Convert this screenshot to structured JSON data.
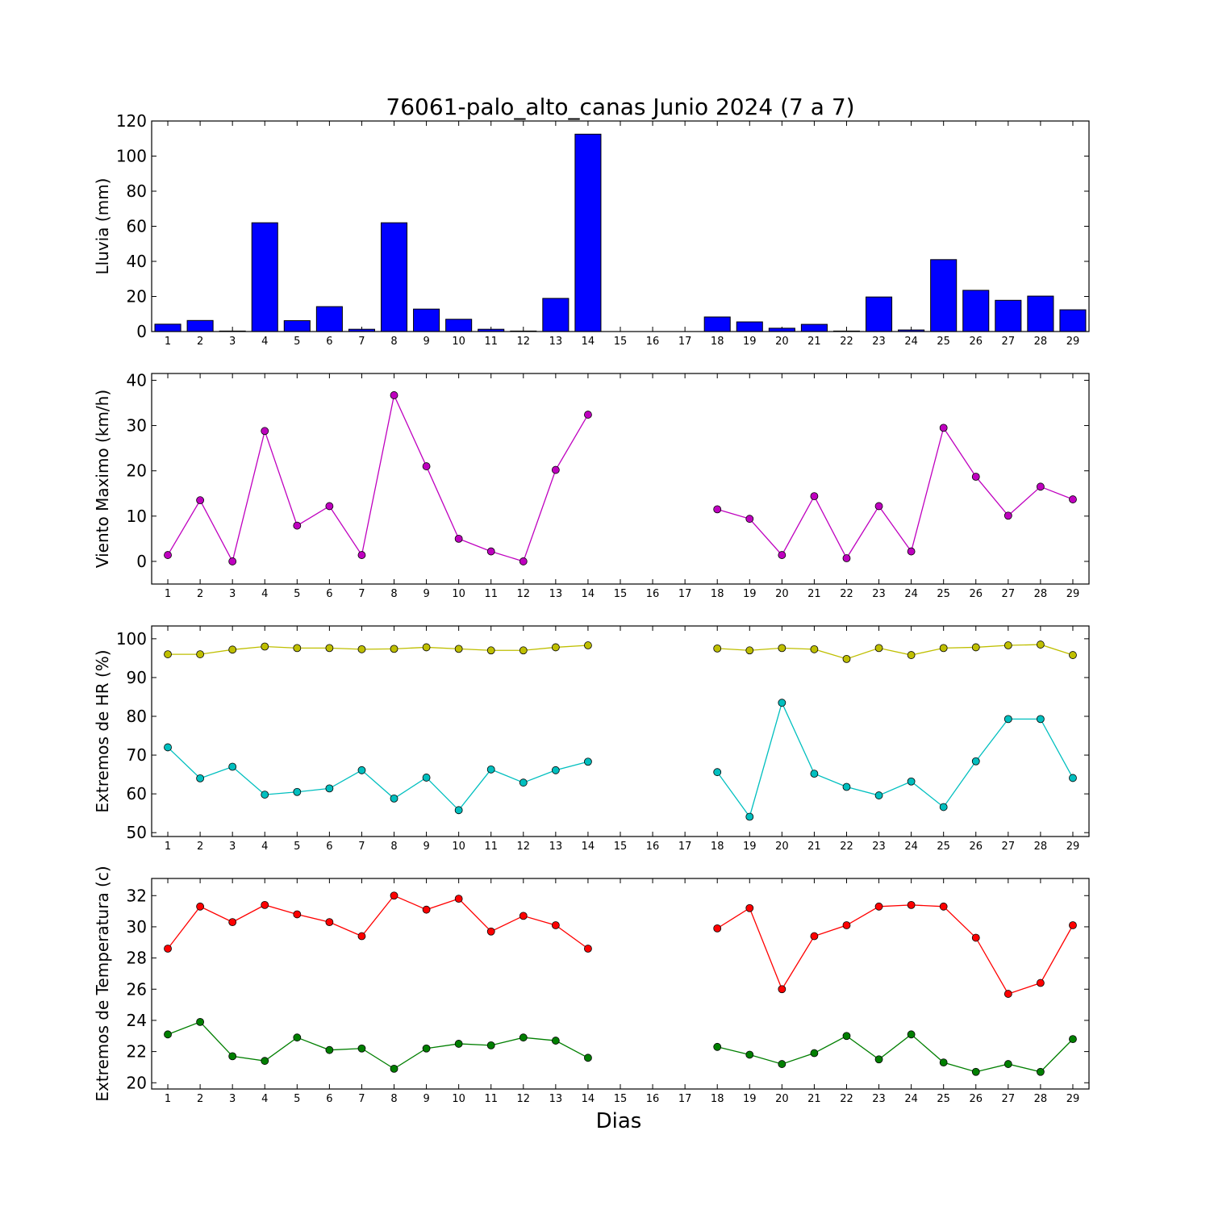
{
  "title": "76061-palo_alto_canas Junio 2024  (7 a 7)",
  "xlabel": "Dias",
  "chart_data": [
    {
      "type": "bar",
      "ylabel": "Lluvia (mm)",
      "categories": [
        1,
        2,
        3,
        4,
        5,
        6,
        7,
        8,
        9,
        10,
        11,
        12,
        13,
        14,
        15,
        16,
        17,
        18,
        19,
        20,
        21,
        22,
        23,
        24,
        25,
        26,
        27,
        28,
        29
      ],
      "ylim": [
        0,
        120
      ],
      "yticks": [
        0,
        20,
        40,
        60,
        80,
        100,
        120
      ],
      "series": [
        {
          "color": "#0000ff",
          "values": [
            4.2,
            6.3,
            0.3,
            62,
            6.2,
            14.2,
            1.3,
            62,
            12.8,
            7,
            1.3,
            0.3,
            18.9,
            112.5,
            null,
            null,
            null,
            8.3,
            5.5,
            1.9,
            4.1,
            0.3,
            19.7,
            0.9,
            41,
            23.5,
            17.8,
            20.2,
            12.4
          ]
        }
      ]
    },
    {
      "type": "line",
      "ylabel": "Viento Maximo (km/h)",
      "x": [
        1,
        2,
        3,
        4,
        5,
        6,
        7,
        8,
        9,
        10,
        11,
        12,
        13,
        14,
        15,
        16,
        17,
        18,
        19,
        20,
        21,
        22,
        23,
        24,
        25,
        26,
        27,
        28,
        29
      ],
      "ylim": [
        -5,
        41.5
      ],
      "yticks": [
        0,
        10,
        20,
        30,
        40
      ],
      "series": [
        {
          "color": "#bf00bf",
          "values": [
            1.4,
            13.5,
            0,
            28.8,
            7.9,
            12.2,
            1.4,
            36.7,
            21,
            5,
            2.2,
            0,
            20.2,
            32.4,
            null,
            null,
            null,
            11.5,
            9.4,
            1.4,
            14.4,
            0.7,
            12.2,
            2.2,
            29.5,
            18.7,
            10.1,
            16.5,
            13.7
          ]
        }
      ]
    },
    {
      "type": "line",
      "ylabel": "Extremos de HR (%)",
      "x": [
        1,
        2,
        3,
        4,
        5,
        6,
        7,
        8,
        9,
        10,
        11,
        12,
        13,
        14,
        15,
        16,
        17,
        18,
        19,
        20,
        21,
        22,
        23,
        24,
        25,
        26,
        27,
        28,
        29
      ],
      "ylim": [
        49,
        103.3
      ],
      "yticks": [
        50,
        60,
        70,
        80,
        90,
        100
      ],
      "series": [
        {
          "color": "#bfbf00",
          "values": [
            96,
            96,
            97.2,
            98,
            97.6,
            97.6,
            97.3,
            97.4,
            97.8,
            97.4,
            97,
            97,
            97.8,
            98.3,
            null,
            null,
            null,
            97.5,
            97,
            97.6,
            97.3,
            94.8,
            97.6,
            95.8,
            97.6,
            97.8,
            98.3,
            98.5,
            95.8
          ]
        },
        {
          "color": "#00bfbf",
          "values": [
            72,
            64,
            67,
            59.8,
            60.5,
            61.4,
            66.1,
            58.8,
            64.2,
            55.8,
            66.3,
            62.9,
            66.1,
            68.3,
            null,
            null,
            null,
            65.6,
            54.1,
            83.5,
            65.2,
            61.8,
            59.6,
            63.2,
            56.6,
            68.4,
            79.3,
            79.3,
            64.1
          ]
        }
      ]
    },
    {
      "type": "line",
      "ylabel": "Extremos de Temperatura (c)",
      "x": [
        1,
        2,
        3,
        4,
        5,
        6,
        7,
        8,
        9,
        10,
        11,
        12,
        13,
        14,
        15,
        16,
        17,
        18,
        19,
        20,
        21,
        22,
        23,
        24,
        25,
        26,
        27,
        28,
        29
      ],
      "ylim": [
        19.6,
        33.1
      ],
      "yticks": [
        20,
        22,
        24,
        26,
        28,
        30,
        32
      ],
      "series": [
        {
          "color": "#ff0000",
          "values": [
            28.6,
            31.3,
            30.3,
            31.4,
            30.8,
            30.3,
            29.4,
            32,
            31.1,
            31.8,
            29.7,
            30.7,
            30.1,
            28.6,
            null,
            null,
            null,
            29.9,
            31.2,
            26,
            29.4,
            30.1,
            31.3,
            31.4,
            31.3,
            29.3,
            25.7,
            26.4,
            30.1
          ]
        },
        {
          "color": "#007f00",
          "values": [
            23.1,
            23.9,
            21.7,
            21.4,
            22.9,
            22.1,
            22.2,
            20.9,
            22.2,
            22.5,
            22.4,
            22.9,
            22.7,
            21.6,
            null,
            null,
            null,
            22.3,
            21.8,
            21.2,
            21.9,
            23,
            21.5,
            23.1,
            21.3,
            20.7,
            21.2,
            20.7,
            22.8
          ]
        }
      ]
    }
  ]
}
